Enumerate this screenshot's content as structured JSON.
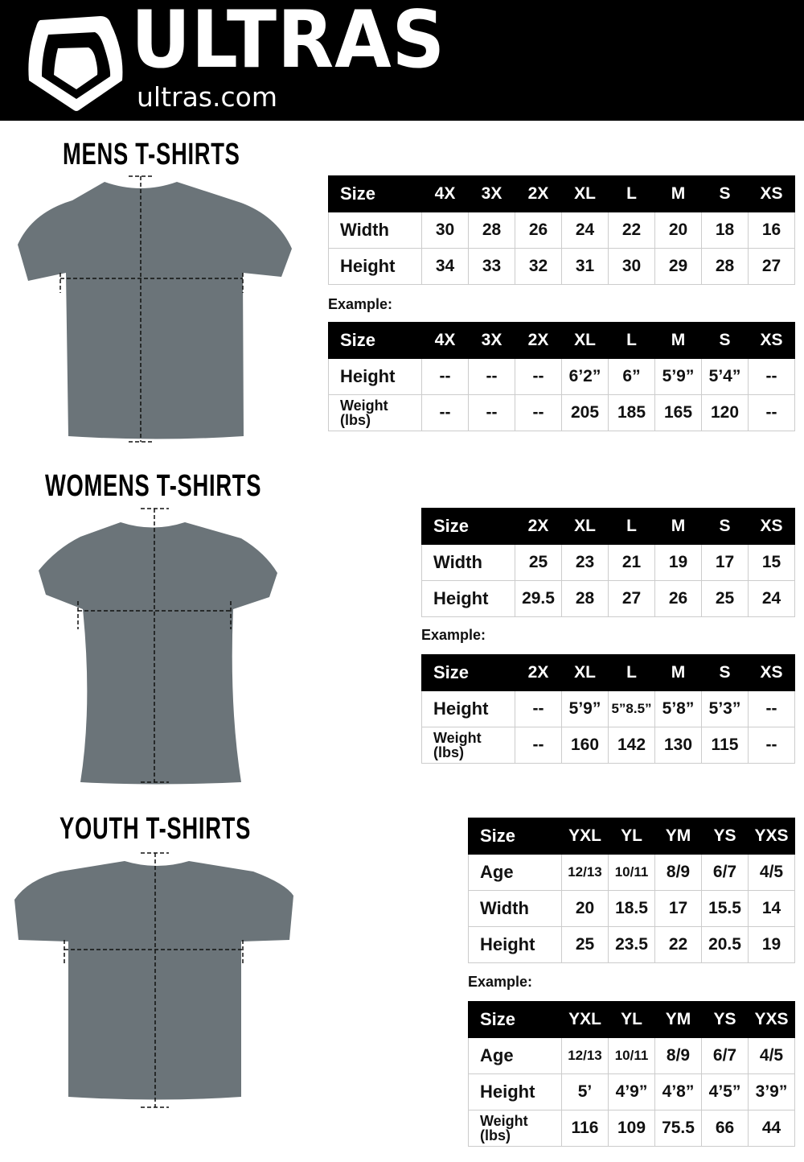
{
  "brand": {
    "name": "ULTRAS",
    "url": "ultras.com",
    "logo_icon": "shield-icon"
  },
  "example_label": "Example:",
  "sections": [
    {
      "id": "mens",
      "title": "MENS T-SHIRTS",
      "measurements": {
        "header": [
          "Size",
          "4X",
          "3X",
          "2X",
          "XL",
          "L",
          "M",
          "S",
          "XS"
        ],
        "rows": [
          [
            "Width",
            "30",
            "28",
            "26",
            "24",
            "22",
            "20",
            "18",
            "16"
          ],
          [
            "Height",
            "34",
            "33",
            "32",
            "31",
            "30",
            "29",
            "28",
            "27"
          ]
        ]
      },
      "example": {
        "header": [
          "Size",
          "4X",
          "3X",
          "2X",
          "XL",
          "L",
          "M",
          "S",
          "XS"
        ],
        "rows": [
          [
            "Height",
            "--",
            "--",
            "--",
            "6’2”",
            "6”",
            "5’9”",
            "5’4”",
            "--"
          ],
          [
            "Weight (lbs)",
            "--",
            "--",
            "--",
            "205",
            "185",
            "165",
            "120",
            "--"
          ]
        ]
      }
    },
    {
      "id": "womens",
      "title": "WOMENS T-SHIRTS",
      "measurements": {
        "header": [
          "Size",
          "2X",
          "XL",
          "L",
          "M",
          "S",
          "XS"
        ],
        "rows": [
          [
            "Width",
            "25",
            "23",
            "21",
            "19",
            "17",
            "15"
          ],
          [
            "Height",
            "29.5",
            "28",
            "27",
            "26",
            "25",
            "24"
          ]
        ]
      },
      "example": {
        "header": [
          "Size",
          "2X",
          "XL",
          "L",
          "M",
          "S",
          "XS"
        ],
        "rows": [
          [
            "Height",
            "--",
            "5’9”",
            "5”8.5”",
            "5’8”",
            "5’3”",
            "--"
          ],
          [
            "Weight (lbs)",
            "--",
            "160",
            "142",
            "130",
            "115",
            "--"
          ]
        ]
      }
    },
    {
      "id": "youth",
      "title": "YOUTH T-SHIRTS",
      "measurements": {
        "header": [
          "Size",
          "YXL",
          "YL",
          "YM",
          "YS",
          "YXS"
        ],
        "rows": [
          [
            "Age",
            "12/13",
            "10/11",
            "8/9",
            "6/7",
            "4/5"
          ],
          [
            "Width",
            "20",
            "18.5",
            "17",
            "15.5",
            "14"
          ],
          [
            "Height",
            "25",
            "23.5",
            "22",
            "20.5",
            "19"
          ]
        ]
      },
      "example": {
        "header": [
          "Size",
          "YXL",
          "YL",
          "YM",
          "YS",
          "YXS"
        ],
        "rows": [
          [
            "Age",
            "12/13",
            "10/11",
            "8/9",
            "6/7",
            "4/5"
          ],
          [
            "Height",
            "5’",
            "4’9”",
            "4’8”",
            "4’5”",
            "3’9”"
          ],
          [
            "Weight (lbs)",
            "116",
            "109",
            "75.5",
            "66",
            "44"
          ]
        ]
      }
    }
  ],
  "colors": {
    "header_bg": "#000000",
    "shirt": "#6b7479",
    "table_head": "#000000"
  }
}
